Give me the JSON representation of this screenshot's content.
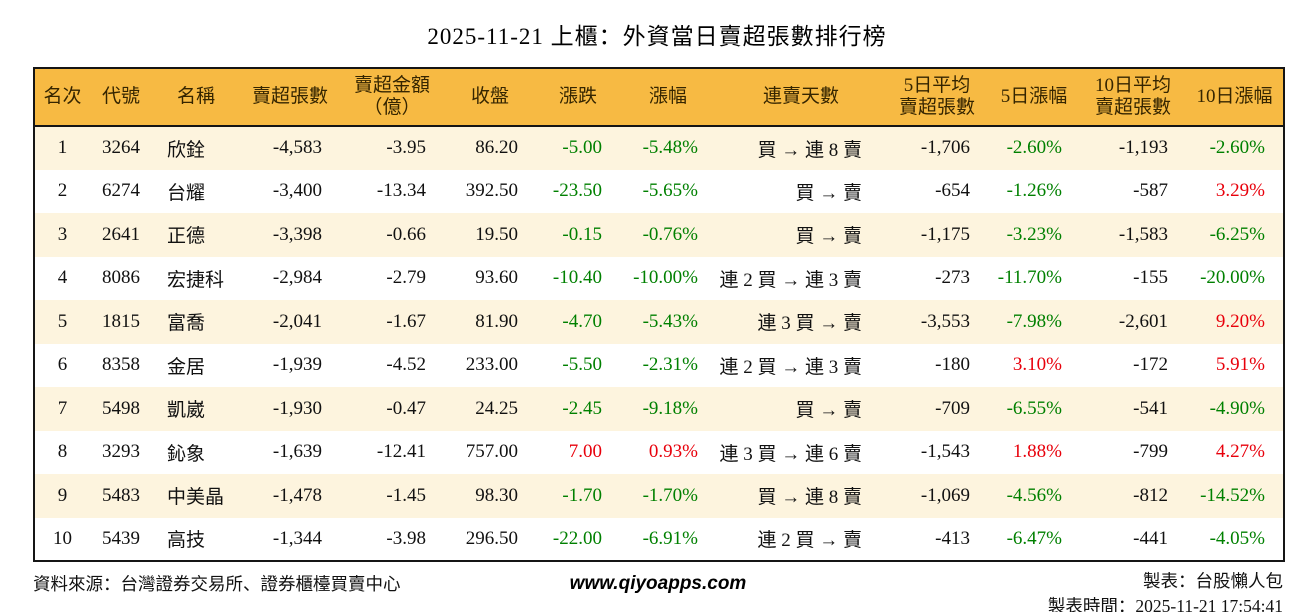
{
  "colors": {
    "header_bg": "#f7ba43",
    "stripe_bg": "#fdf4de",
    "positive_red": "#e8000b",
    "negative_green": "#008000"
  },
  "chart_data": {
    "type": "table",
    "title": "2025-11-21 上櫃：外資當日賣超張數排行榜",
    "columns": [
      "名次",
      "代號",
      "名稱",
      "賣超張數",
      "賣超金額\n（億）",
      "收盤",
      "漲跌",
      "漲幅",
      "連賣天數",
      "5日平均\n賣超張數",
      "5日漲幅",
      "10日平均\n賣超張數",
      "10日漲幅"
    ],
    "rows": [
      {
        "rank": "1",
        "code": "3264",
        "name": "欣銓",
        "sell_volume": "-4,583",
        "sell_amount": "-3.95",
        "close": "86.20",
        "change": "-5.00",
        "change_color": "green",
        "change_pct": "-5.48%",
        "change_pct_color": "green",
        "streak": "買 → 連 8 賣",
        "avg5": "-1,706",
        "pct5": "-2.60%",
        "pct5_color": "green",
        "avg10": "-1,193",
        "pct10": "-2.60%",
        "pct10_color": "green"
      },
      {
        "rank": "2",
        "code": "6274",
        "name": "台耀",
        "sell_volume": "-3,400",
        "sell_amount": "-13.34",
        "close": "392.50",
        "change": "-23.50",
        "change_color": "green",
        "change_pct": "-5.65%",
        "change_pct_color": "green",
        "streak": "買 → 賣",
        "avg5": "-654",
        "pct5": "-1.26%",
        "pct5_color": "green",
        "avg10": "-587",
        "pct10": "3.29%",
        "pct10_color": "red"
      },
      {
        "rank": "3",
        "code": "2641",
        "name": "正德",
        "sell_volume": "-3,398",
        "sell_amount": "-0.66",
        "close": "19.50",
        "change": "-0.15",
        "change_color": "green",
        "change_pct": "-0.76%",
        "change_pct_color": "green",
        "streak": "買 → 賣",
        "avg5": "-1,175",
        "pct5": "-3.23%",
        "pct5_color": "green",
        "avg10": "-1,583",
        "pct10": "-6.25%",
        "pct10_color": "green"
      },
      {
        "rank": "4",
        "code": "8086",
        "name": "宏捷科",
        "sell_volume": "-2,984",
        "sell_amount": "-2.79",
        "close": "93.60",
        "change": "-10.40",
        "change_color": "green",
        "change_pct": "-10.00%",
        "change_pct_color": "green",
        "streak": "連 2 買 → 連 3 賣",
        "avg5": "-273",
        "pct5": "-11.70%",
        "pct5_color": "green",
        "avg10": "-155",
        "pct10": "-20.00%",
        "pct10_color": "green"
      },
      {
        "rank": "5",
        "code": "1815",
        "name": "富喬",
        "sell_volume": "-2,041",
        "sell_amount": "-1.67",
        "close": "81.90",
        "change": "-4.70",
        "change_color": "green",
        "change_pct": "-5.43%",
        "change_pct_color": "green",
        "streak": "連 3 買 → 賣",
        "avg5": "-3,553",
        "pct5": "-7.98%",
        "pct5_color": "green",
        "avg10": "-2,601",
        "pct10": "9.20%",
        "pct10_color": "red"
      },
      {
        "rank": "6",
        "code": "8358",
        "name": "金居",
        "sell_volume": "-1,939",
        "sell_amount": "-4.52",
        "close": "233.00",
        "change": "-5.50",
        "change_color": "green",
        "change_pct": "-2.31%",
        "change_pct_color": "green",
        "streak": "連 2 買 → 連 3 賣",
        "avg5": "-180",
        "pct5": "3.10%",
        "pct5_color": "red",
        "avg10": "-172",
        "pct10": "5.91%",
        "pct10_color": "red"
      },
      {
        "rank": "7",
        "code": "5498",
        "name": "凱崴",
        "sell_volume": "-1,930",
        "sell_amount": "-0.47",
        "close": "24.25",
        "change": "-2.45",
        "change_color": "green",
        "change_pct": "-9.18%",
        "change_pct_color": "green",
        "streak": "買 → 賣",
        "avg5": "-709",
        "pct5": "-6.55%",
        "pct5_color": "green",
        "avg10": "-541",
        "pct10": "-4.90%",
        "pct10_color": "green"
      },
      {
        "rank": "8",
        "code": "3293",
        "name": "鈊象",
        "sell_volume": "-1,639",
        "sell_amount": "-12.41",
        "close": "757.00",
        "change": "7.00",
        "change_color": "red",
        "change_pct": "0.93%",
        "change_pct_color": "red",
        "streak": "連 3 買 → 連 6 賣",
        "avg5": "-1,543",
        "pct5": "1.88%",
        "pct5_color": "red",
        "avg10": "-799",
        "pct10": "4.27%",
        "pct10_color": "red"
      },
      {
        "rank": "9",
        "code": "5483",
        "name": "中美晶",
        "sell_volume": "-1,478",
        "sell_amount": "-1.45",
        "close": "98.30",
        "change": "-1.70",
        "change_color": "green",
        "change_pct": "-1.70%",
        "change_pct_color": "green",
        "streak": "買 → 連 8 賣",
        "avg5": "-1,069",
        "pct5": "-4.56%",
        "pct5_color": "green",
        "avg10": "-812",
        "pct10": "-14.52%",
        "pct10_color": "green"
      },
      {
        "rank": "10",
        "code": "5439",
        "name": "高技",
        "sell_volume": "-1,344",
        "sell_amount": "-3.98",
        "close": "296.50",
        "change": "-22.00",
        "change_color": "green",
        "change_pct": "-6.91%",
        "change_pct_color": "green",
        "streak": "連 2 買 → 賣",
        "avg5": "-413",
        "pct5": "-6.47%",
        "pct5_color": "green",
        "avg10": "-441",
        "pct10": "-4.05%",
        "pct10_color": "green"
      }
    ]
  },
  "footer": {
    "source": "資料來源：台灣證券交易所、證券櫃檯買賣中心",
    "website": "www.qiyoapps.com",
    "maker": "製表：台股懶人包",
    "made_time": "製表時間：2025-11-21 17:54:41"
  }
}
